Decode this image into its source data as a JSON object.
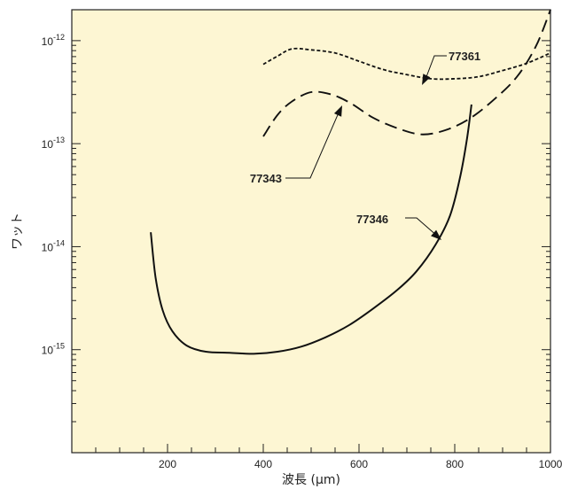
{
  "chart_data": {
    "type": "line",
    "title": "",
    "xlabel": "波長 (μm)",
    "ylabel": "ワット",
    "xlim": [
      0,
      1000
    ],
    "ylim_exp": [
      -16,
      -11.7
    ],
    "y_scale": "log",
    "grid": false,
    "background": "#fdf6d3",
    "x_ticks": [
      {
        "value": 200,
        "label": "200"
      },
      {
        "value": 400,
        "label": "400"
      },
      {
        "value": 600,
        "label": "600"
      },
      {
        "value": 800,
        "label": "800"
      },
      {
        "value": 1000,
        "label": "1000"
      }
    ],
    "y_ticks": [
      {
        "exp": -12,
        "base": "10",
        "sup": "-12"
      },
      {
        "exp": -13,
        "base": "10",
        "sup": "-13"
      },
      {
        "exp": -14,
        "base": "10",
        "sup": "-14"
      },
      {
        "exp": -15,
        "base": "10",
        "sup": "-15"
      }
    ],
    "series": [
      {
        "name": "77361",
        "style": "dotted",
        "points": [
          [
            400,
            -12.23
          ],
          [
            430,
            -12.15
          ],
          [
            460,
            -12.08
          ],
          [
            500,
            -12.09
          ],
          [
            550,
            -12.12
          ],
          [
            600,
            -12.2
          ],
          [
            650,
            -12.28
          ],
          [
            700,
            -12.33
          ],
          [
            750,
            -12.37
          ],
          [
            800,
            -12.37
          ],
          [
            850,
            -12.35
          ],
          [
            900,
            -12.29
          ],
          [
            950,
            -12.22
          ],
          [
            1000,
            -12.12
          ]
        ]
      },
      {
        "name": "77343",
        "style": "dashed",
        "points": [
          [
            400,
            -12.93
          ],
          [
            430,
            -12.72
          ],
          [
            460,
            -12.59
          ],
          [
            500,
            -12.5
          ],
          [
            540,
            -12.52
          ],
          [
            580,
            -12.6
          ],
          [
            630,
            -12.75
          ],
          [
            680,
            -12.85
          ],
          [
            730,
            -12.91
          ],
          [
            780,
            -12.87
          ],
          [
            830,
            -12.76
          ],
          [
            880,
            -12.58
          ],
          [
            930,
            -12.35
          ],
          [
            970,
            -12.05
          ],
          [
            1000,
            -11.7
          ]
        ]
      },
      {
        "name": "77346",
        "style": "solid",
        "points": [
          [
            165,
            -13.86
          ],
          [
            175,
            -14.3
          ],
          [
            190,
            -14.62
          ],
          [
            210,
            -14.82
          ],
          [
            240,
            -14.96
          ],
          [
            280,
            -15.02
          ],
          [
            330,
            -15.03
          ],
          [
            380,
            -15.04
          ],
          [
            430,
            -15.02
          ],
          [
            480,
            -14.97
          ],
          [
            530,
            -14.88
          ],
          [
            580,
            -14.76
          ],
          [
            630,
            -14.6
          ],
          [
            680,
            -14.42
          ],
          [
            720,
            -14.24
          ],
          [
            760,
            -13.98
          ],
          [
            790,
            -13.7
          ],
          [
            810,
            -13.35
          ],
          [
            825,
            -12.97
          ],
          [
            835,
            -12.62
          ]
        ]
      }
    ],
    "annotations": [
      {
        "text": "77361",
        "series": "77361"
      },
      {
        "text": "77343",
        "series": "77343"
      },
      {
        "text": "77346",
        "series": "77346"
      }
    ]
  }
}
